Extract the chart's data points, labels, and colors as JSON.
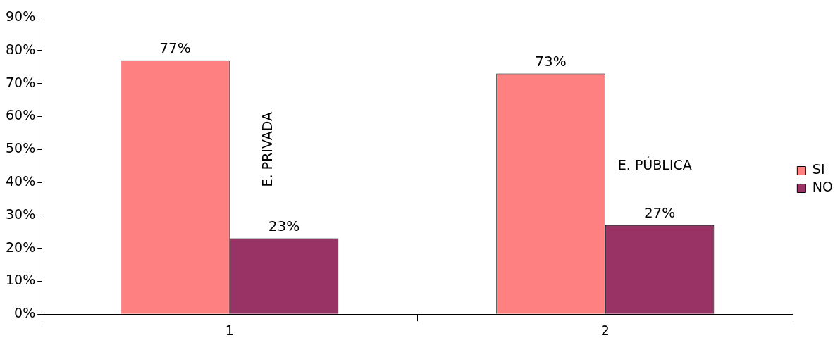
{
  "chart_data": {
    "type": "bar",
    "categories": [
      "1",
      "2"
    ],
    "series": [
      {
        "name": "SI",
        "color": "#ff8080",
        "values": [
          77,
          73
        ]
      },
      {
        "name": "NO",
        "color": "#993366",
        "values": [
          23,
          27
        ]
      }
    ],
    "ylim": [
      0,
      90
    ],
    "yticks": [
      {
        "value": 0,
        "label": "0%"
      },
      {
        "value": 10,
        "label": "10%"
      },
      {
        "value": 20,
        "label": "20%"
      },
      {
        "value": 30,
        "label": "30%"
      },
      {
        "value": 40,
        "label": "40%"
      },
      {
        "value": 50,
        "label": "50%"
      },
      {
        "value": 60,
        "label": "60%"
      },
      {
        "value": 70,
        "label": "70%"
      },
      {
        "value": 80,
        "label": "80%"
      },
      {
        "value": 90,
        "label": "90%"
      }
    ],
    "value_labels": [
      [
        "77%",
        "73%"
      ],
      [
        "23%",
        "27%"
      ]
    ],
    "annotations": [
      {
        "text": "E. PRIVADA",
        "x": "1",
        "y": 50
      },
      {
        "text": "E. PÚBLICA",
        "x": "2",
        "y": 45
      }
    ],
    "grid": false,
    "legend": "right"
  }
}
